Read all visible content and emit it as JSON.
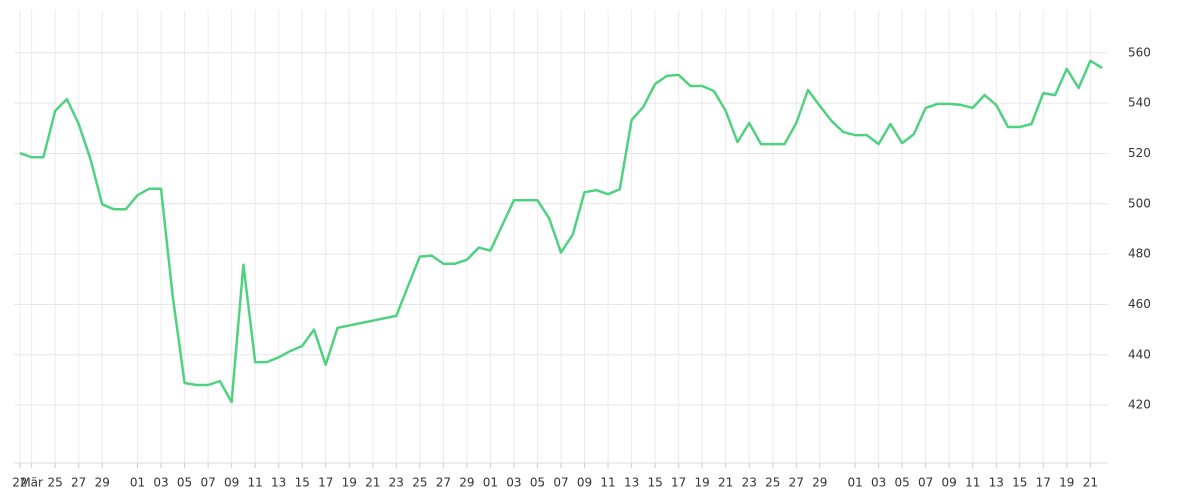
{
  "chart_data": {
    "type": "line",
    "x": [
      0,
      1,
      2,
      3,
      4,
      5,
      6,
      7,
      8,
      9,
      10,
      11,
      12,
      13,
      14,
      15,
      16,
      17,
      18,
      19,
      20,
      21,
      22,
      23,
      24,
      25,
      26,
      27,
      32,
      34,
      35,
      36,
      37,
      38,
      39,
      40,
      42,
      43,
      44,
      45,
      46,
      47,
      48,
      49,
      50,
      51,
      52,
      53,
      54,
      55,
      56,
      57,
      58,
      59,
      60,
      61,
      62,
      63,
      64,
      65,
      66,
      67,
      68,
      69,
      70,
      71,
      72,
      73,
      74,
      75,
      76,
      77,
      78,
      79,
      80,
      81,
      82,
      83,
      84,
      85,
      86,
      87,
      88,
      89,
      90,
      91,
      92
    ],
    "series": [
      {
        "color": "#4ed27f",
        "values": [
          520.1,
          518.5,
          518.5,
          536.9,
          541.6,
          531.7,
          517.7,
          499.8,
          497.8,
          497.8,
          503.4,
          506,
          506,
          463,
          428.8,
          428,
          428,
          429.6,
          421.2,
          475.8,
          437.1,
          437.1,
          439,
          441.5,
          443.5,
          450,
          436,
          450.7,
          455.5,
          479,
          479.4,
          476.2,
          476.2,
          477.8,
          482.6,
          481.4,
          501.4,
          501.4,
          501.4,
          494.2,
          480.6,
          487.8,
          504.6,
          505.4,
          503.8,
          505.8,
          533.3,
          538.5,
          547.6,
          550.8,
          551.2,
          546.8,
          546.8,
          544.8,
          536.9,
          524.5,
          532.1,
          523.7,
          523.7,
          523.7,
          532.1,
          545.2,
          538.9,
          532.9,
          528.5,
          527.3,
          527.3,
          523.7,
          531.7,
          524.1,
          527.7,
          538.1,
          539.7,
          539.7,
          539.3,
          538.1,
          543.2,
          539.3,
          530.5,
          530.5,
          531.7,
          544,
          543.2,
          553.6,
          546,
          556.8,
          554
        ]
      }
    ],
    "xlim": [
      -0.5,
      92.5
    ],
    "xticks": [
      {
        "value": 0,
        "label": "22"
      },
      {
        "value": 1,
        "label": "Mär"
      },
      {
        "value": 3,
        "label": "25"
      },
      {
        "value": 5,
        "label": "27"
      },
      {
        "value": 7,
        "label": "29"
      },
      {
        "value": 10,
        "label": "01"
      },
      {
        "value": 12,
        "label": "03"
      },
      {
        "value": 14,
        "label": "05"
      },
      {
        "value": 16,
        "label": "07"
      },
      {
        "value": 18,
        "label": "09"
      },
      {
        "value": 20,
        "label": "11"
      },
      {
        "value": 22,
        "label": "13"
      },
      {
        "value": 24,
        "label": "15"
      },
      {
        "value": 26,
        "label": "17"
      },
      {
        "value": 28,
        "label": "19"
      },
      {
        "value": 30,
        "label": "21"
      },
      {
        "value": 32,
        "label": "23"
      },
      {
        "value": 34,
        "label": "25"
      },
      {
        "value": 36,
        "label": "27"
      },
      {
        "value": 38,
        "label": "29"
      },
      {
        "value": 40,
        "label": "01"
      },
      {
        "value": 42,
        "label": "03"
      },
      {
        "value": 44,
        "label": "05"
      },
      {
        "value": 46,
        "label": "07"
      },
      {
        "value": 48,
        "label": "09"
      },
      {
        "value": 50,
        "label": "11"
      },
      {
        "value": 52,
        "label": "13"
      },
      {
        "value": 54,
        "label": "15"
      },
      {
        "value": 56,
        "label": "17"
      },
      {
        "value": 58,
        "label": "19"
      },
      {
        "value": 60,
        "label": "21"
      },
      {
        "value": 62,
        "label": "23"
      },
      {
        "value": 64,
        "label": "25"
      },
      {
        "value": 66,
        "label": "27"
      },
      {
        "value": 68,
        "label": "29"
      },
      {
        "value": 71,
        "label": "01"
      },
      {
        "value": 73,
        "label": "03"
      },
      {
        "value": 75,
        "label": "05"
      },
      {
        "value": 77,
        "label": "07"
      },
      {
        "value": 79,
        "label": "09"
      },
      {
        "value": 81,
        "label": "11"
      },
      {
        "value": 83,
        "label": "13"
      },
      {
        "value": 85,
        "label": "15"
      },
      {
        "value": 87,
        "label": "17"
      },
      {
        "value": 89,
        "label": "19"
      },
      {
        "value": 91,
        "label": "21"
      }
    ],
    "ylim": [
      397,
      577
    ],
    "yticks": [
      420,
      440,
      460,
      480,
      500,
      520,
      540,
      560
    ],
    "grid": true
  }
}
